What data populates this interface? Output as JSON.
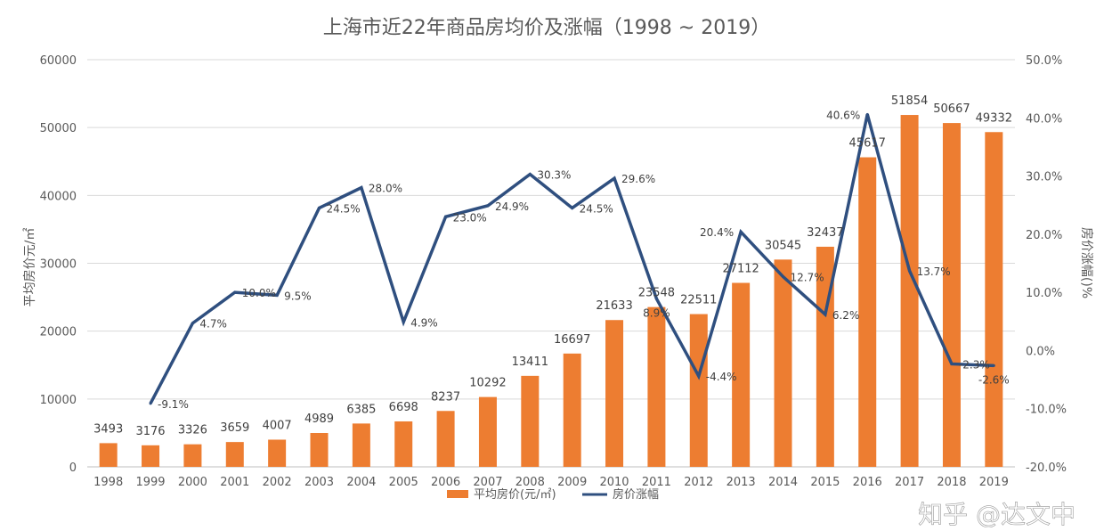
{
  "chart_data": {
    "type": "bar+line",
    "title": "上海市近22年商品房均价及涨幅（1998 ~ 2019）",
    "ylabel_left": "平均房价元/㎡",
    "ylabel_right": "房价涨幅()%",
    "categories": [
      "1998",
      "1999",
      "2000",
      "2001",
      "2002",
      "2003",
      "2004",
      "2005",
      "2006",
      "2007",
      "2008",
      "2009",
      "2010",
      "2011",
      "2012",
      "2013",
      "2014",
      "2015",
      "2016",
      "2017",
      "2018",
      "2019"
    ],
    "series": [
      {
        "name": "平均房价(元/㎡)",
        "type": "bar",
        "axis": "left",
        "color": "#ED7D31",
        "values": [
          3493,
          3176,
          3326,
          3659,
          4007,
          4989,
          6385,
          6698,
          8237,
          10292,
          13411,
          16697,
          21633,
          23548,
          22511,
          27112,
          30545,
          32437,
          45617,
          51854,
          50667,
          49332
        ]
      },
      {
        "name": "房价涨幅",
        "type": "line",
        "axis": "right",
        "color": "#2F4F7F",
        "values": [
          null,
          -9.1,
          4.7,
          10.0,
          9.5,
          24.5,
          28.0,
          4.9,
          23.0,
          24.9,
          30.3,
          24.5,
          29.6,
          8.9,
          -4.4,
          20.4,
          12.7,
          6.2,
          40.6,
          13.7,
          -2.3,
          -2.6
        ],
        "labels": [
          "",
          "-9.1%",
          "4.7%",
          "10.0%",
          "9.5%",
          "24.5%",
          "28.0%",
          "4.9%",
          "23.0%",
          "24.9%",
          "30.3%",
          "24.5%",
          "29.6%",
          "8.9%",
          "-4.4%",
          "20.4%",
          "12.7%",
          "6.2%",
          "40.6%",
          "13.7%",
          "-2.3%",
          "-2.6%"
        ]
      }
    ],
    "ylim_left": [
      0,
      60000
    ],
    "yticks_left": [
      "0",
      "10000",
      "20000",
      "30000",
      "40000",
      "50000",
      "60000"
    ],
    "ylim_right": [
      -20,
      50
    ],
    "yticks_right": [
      "-20.0%",
      "-10.0%",
      "0.0%",
      "10.0%",
      "20.0%",
      "30.0%",
      "40.0%",
      "50.0%"
    ],
    "grid": true,
    "legend": "bottom",
    "watermark": "知乎 @达文中"
  }
}
